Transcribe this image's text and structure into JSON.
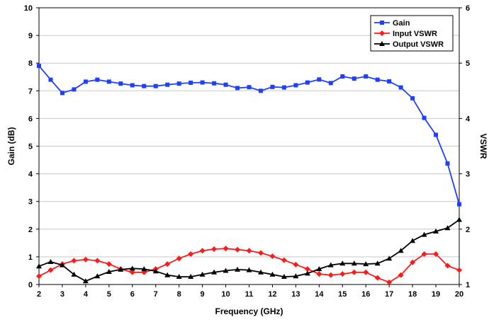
{
  "chart_data": {
    "type": "line",
    "xlabel": "Frequency (GHz)",
    "ylabel": "Gain (dB)",
    "y2label": "VSWR",
    "xlim": [
      2,
      20
    ],
    "ylim": [
      0,
      10
    ],
    "y2lim": [
      1,
      6
    ],
    "xticks": [
      "2",
      "3",
      "4",
      "5",
      "6",
      "7",
      "8",
      "9",
      "10",
      "11",
      "12",
      "13",
      "14",
      "15",
      "16",
      "17",
      "18",
      "19",
      "20"
    ],
    "yticks": [
      "0",
      "1",
      "2",
      "3",
      "4",
      "5",
      "6",
      "7",
      "8",
      "9",
      "10"
    ],
    "y2ticks": [
      "1",
      "2",
      "3",
      "4",
      "5",
      "6"
    ],
    "grid": "horizontal",
    "legend_position": "top-right",
    "series": [
      {
        "name": "Gain",
        "axis": "left",
        "color": "#1f3fff",
        "marker": "square",
        "x": [
          2,
          2.5,
          3,
          3.5,
          4,
          4.5,
          5,
          5.5,
          6,
          6.5,
          7,
          7.5,
          8,
          8.5,
          9,
          9.5,
          10,
          10.5,
          11,
          11.5,
          12,
          12.5,
          13,
          13.5,
          14,
          14.5,
          15,
          15.5,
          16,
          16.5,
          17,
          17.5,
          18,
          18.5,
          19,
          19.5,
          20
        ],
        "values": [
          7.9,
          7.4,
          6.92,
          7.05,
          7.33,
          7.4,
          7.33,
          7.26,
          7.2,
          7.17,
          7.17,
          7.22,
          7.26,
          7.29,
          7.3,
          7.27,
          7.22,
          7.1,
          7.13,
          7.0,
          7.14,
          7.12,
          7.2,
          7.3,
          7.41,
          7.28,
          7.52,
          7.44,
          7.52,
          7.4,
          7.34,
          7.12,
          6.73,
          6.02,
          5.41,
          4.37,
          2.9
        ]
      },
      {
        "name": "Input VSWR",
        "axis": "right",
        "color": "#ff1a1a",
        "marker": "diamond",
        "x": [
          2,
          2.5,
          3,
          3.5,
          4,
          4.5,
          5,
          5.5,
          6,
          6.5,
          7,
          7.5,
          8,
          8.5,
          9,
          9.5,
          10,
          10.5,
          11,
          11.5,
          12,
          12.5,
          13,
          13.5,
          14,
          14.5,
          15,
          15.5,
          16,
          16.5,
          17,
          17.5,
          18,
          18.5,
          19,
          19.5,
          20
        ],
        "values": [
          1.15,
          1.26,
          1.37,
          1.43,
          1.45,
          1.43,
          1.37,
          1.28,
          1.22,
          1.22,
          1.28,
          1.37,
          1.47,
          1.55,
          1.61,
          1.64,
          1.65,
          1.63,
          1.61,
          1.57,
          1.51,
          1.44,
          1.36,
          1.28,
          1.19,
          1.17,
          1.19,
          1.22,
          1.22,
          1.12,
          1.04,
          1.17,
          1.4,
          1.55,
          1.55,
          1.34,
          1.26
        ]
      },
      {
        "name": "Output VSWR",
        "axis": "right",
        "color": "#000000",
        "marker": "triangle",
        "x": [
          2,
          2.5,
          3,
          3.5,
          4,
          4.5,
          5,
          5.5,
          6,
          6.5,
          7,
          7.5,
          8,
          8.5,
          9,
          9.5,
          10,
          10.5,
          11,
          11.5,
          12,
          12.5,
          13,
          13.5,
          14,
          14.5,
          15,
          15.5,
          16,
          16.5,
          17,
          17.5,
          18,
          18.5,
          19,
          19.5,
          20
        ],
        "values": [
          1.33,
          1.41,
          1.35,
          1.18,
          1.06,
          1.15,
          1.23,
          1.27,
          1.29,
          1.28,
          1.24,
          1.17,
          1.14,
          1.14,
          1.18,
          1.22,
          1.25,
          1.27,
          1.26,
          1.22,
          1.18,
          1.14,
          1.15,
          1.2,
          1.28,
          1.35,
          1.38,
          1.38,
          1.37,
          1.38,
          1.47,
          1.61,
          1.79,
          1.9,
          1.96,
          2.02,
          2.17
        ]
      }
    ]
  }
}
